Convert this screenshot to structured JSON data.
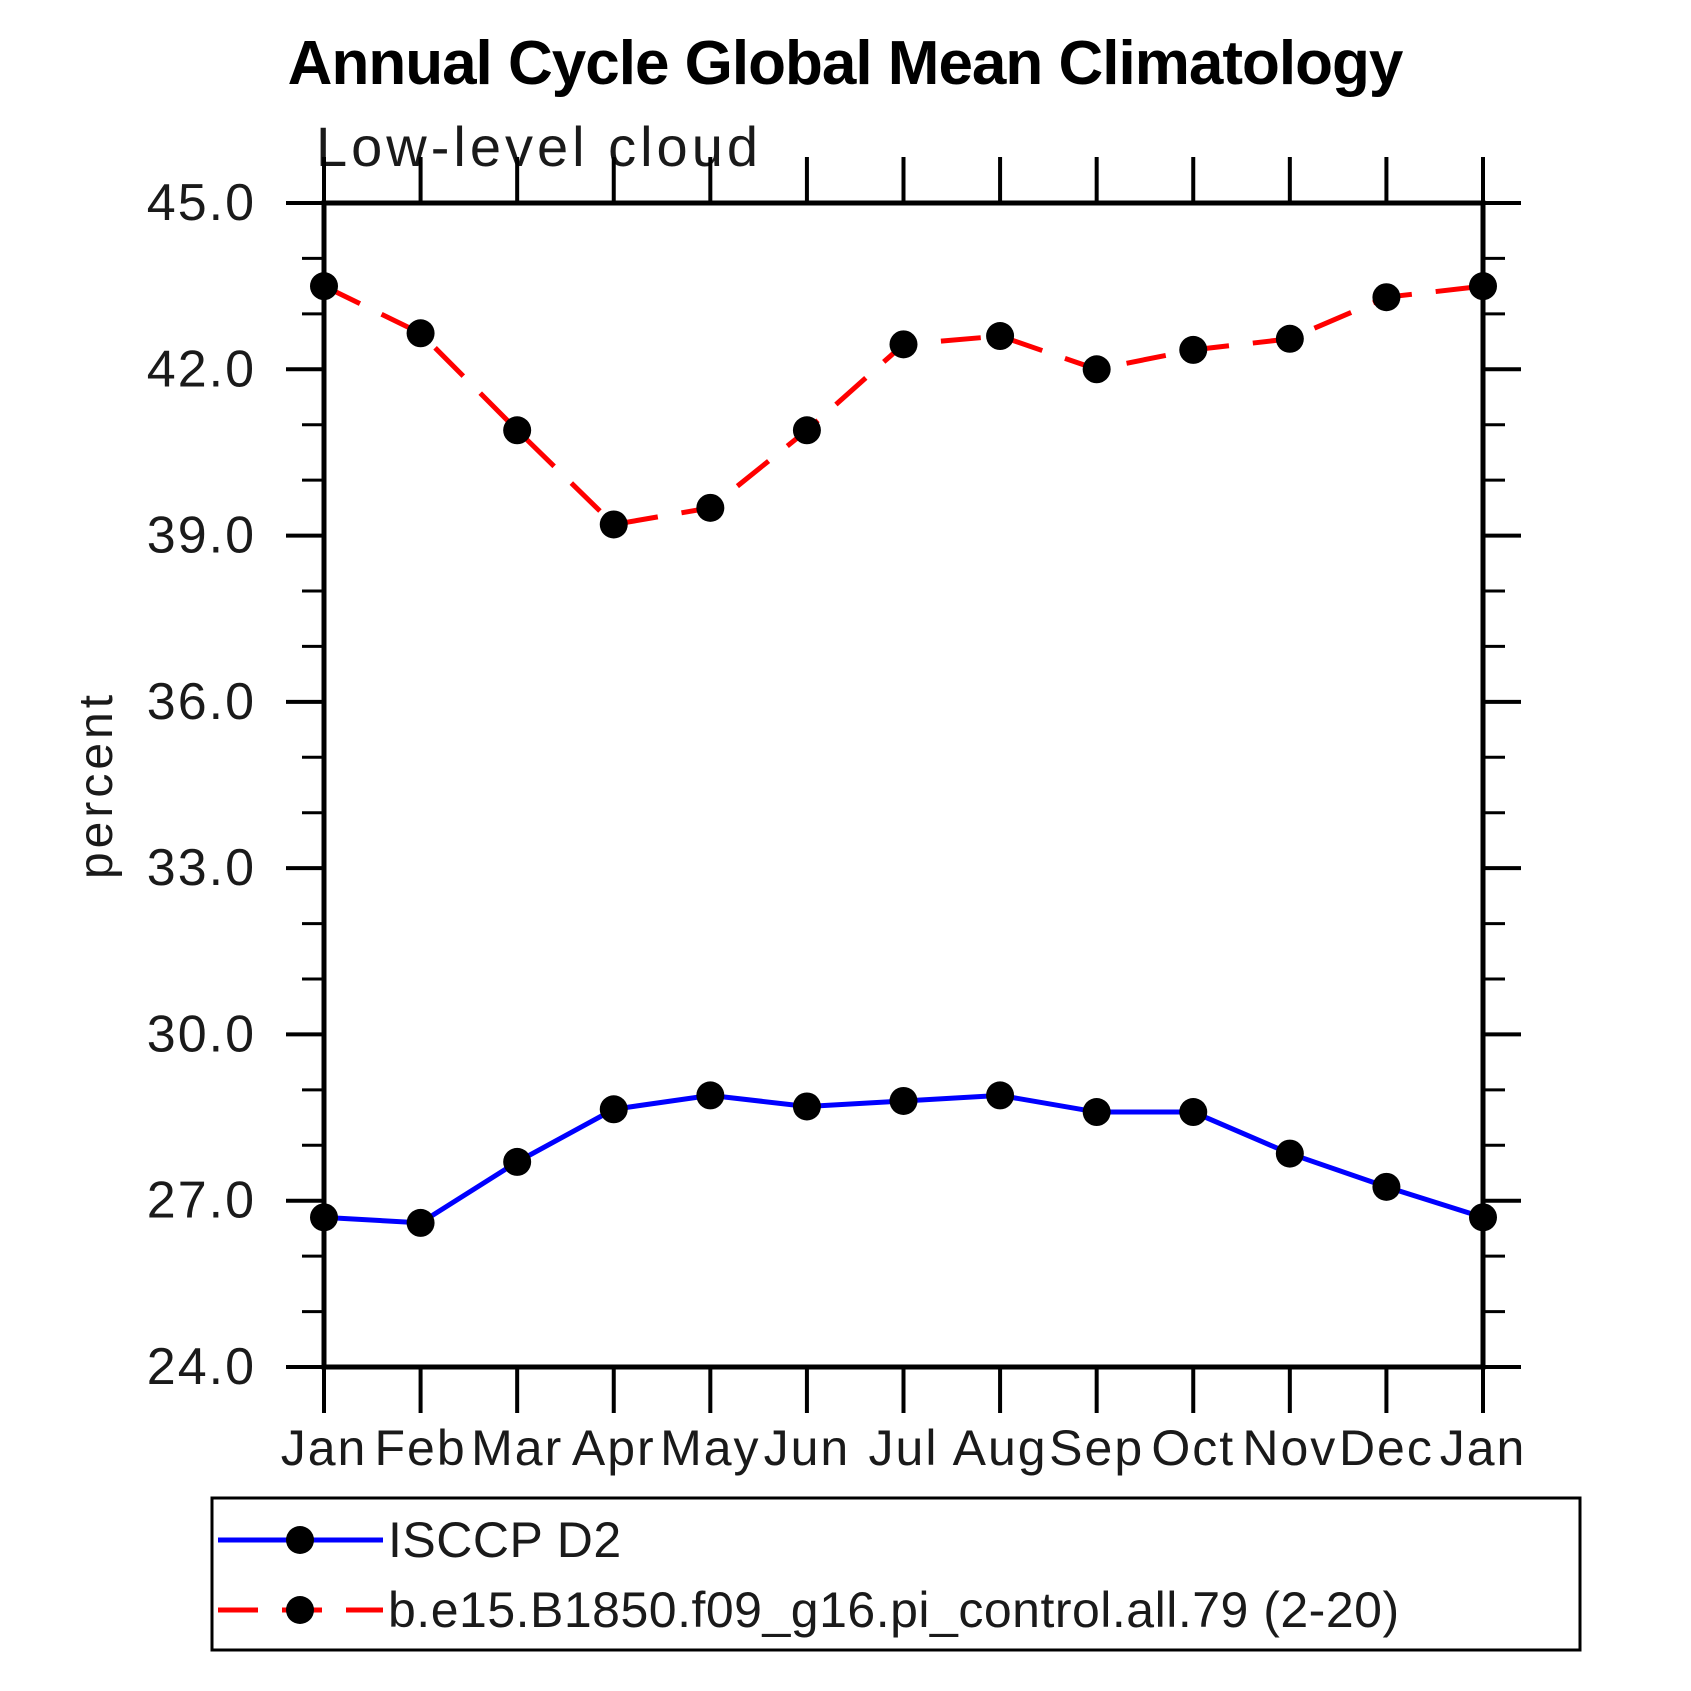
{
  "page": {
    "background": "#ffffff"
  },
  "header": {
    "title": "Annual Cycle Global Mean Climatology",
    "subtitle": "Low-level cloud"
  },
  "chart_data": {
    "type": "line",
    "title": "Annual Cycle Global Mean Climatology",
    "subtitle": "Low-level cloud",
    "xlabel": "",
    "ylabel": "percent",
    "categories": [
      "Jan",
      "Feb",
      "Mar",
      "Apr",
      "May",
      "Jun",
      "Jul",
      "Aug",
      "Sep",
      "Oct",
      "Nov",
      "Dec",
      "Jan"
    ],
    "ylim": [
      24.0,
      45.0
    ],
    "ytick_major_values": [
      24.0,
      27.0,
      30.0,
      33.0,
      36.0,
      39.0,
      42.0,
      45.0
    ],
    "ytick_major_labels": [
      "24.0",
      "27.0",
      "30.0",
      "33.0",
      "36.0",
      "39.0",
      "42.0",
      "45.0"
    ],
    "ytick_minor_step": 1.0,
    "grid": false,
    "legend_position": "bottom",
    "frame_color": "#000000",
    "marker_color": "#000000",
    "series": [
      {
        "name": "ISCCP D2",
        "color": "#0000ff",
        "style": "solid",
        "marker": "circle",
        "values": [
          26.7,
          26.6,
          27.7,
          28.65,
          28.9,
          28.7,
          28.8,
          28.9,
          28.6,
          28.6,
          27.85,
          27.25,
          26.7
        ]
      },
      {
        "name": "b.e15.B1850.f09_g16.pi_control.all.79 (2-20)",
        "color": "#ff0000",
        "style": "dashed",
        "marker": "circle",
        "values": [
          43.5,
          42.65,
          40.9,
          39.2,
          39.5,
          40.9,
          42.45,
          42.6,
          42.0,
          42.35,
          42.55,
          43.3,
          43.5
        ]
      }
    ]
  }
}
